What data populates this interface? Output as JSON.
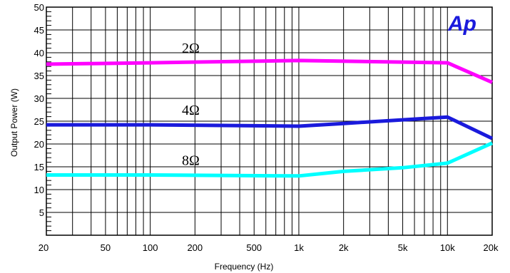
{
  "chart_data": {
    "type": "line",
    "xscale": "log",
    "xlim": [
      20,
      20000
    ],
    "ylim": [
      0,
      50
    ],
    "xlabel": "Frequency (Hz)",
    "ylabel": "Output Power (W)",
    "grid": true,
    "legend": "none",
    "xticks": [
      {
        "value": 20,
        "label": "20"
      },
      {
        "value": 50,
        "label": "50"
      },
      {
        "value": 100,
        "label": "100"
      },
      {
        "value": 200,
        "label": "200"
      },
      {
        "value": 500,
        "label": "500"
      },
      {
        "value": 1000,
        "label": "1k"
      },
      {
        "value": 2000,
        "label": "2k"
      },
      {
        "value": 5000,
        "label": "5k"
      },
      {
        "value": 10000,
        "label": "10k"
      },
      {
        "value": 20000,
        "label": "20k"
      }
    ],
    "yticks": [
      5,
      10,
      15,
      20,
      25,
      30,
      35,
      40,
      45,
      50
    ],
    "series": [
      {
        "name": "2Ω",
        "color": "#ff00ff",
        "x": [
          20,
          100,
          1000,
          10000,
          20000
        ],
        "y": [
          37.5,
          37.8,
          38.3,
          37.8,
          33.5
        ]
      },
      {
        "name": "4Ω",
        "color": "#1a1adc",
        "x": [
          20,
          100,
          1000,
          2000,
          5000,
          10000,
          20000
        ],
        "y": [
          24.2,
          24.2,
          23.9,
          24.5,
          25.3,
          25.9,
          21.2
        ]
      },
      {
        "name": "8Ω",
        "color": "#00ffff",
        "x": [
          20,
          100,
          1000,
          2000,
          5000,
          10000,
          20000
        ],
        "y": [
          13.2,
          13.2,
          13.0,
          14.0,
          14.8,
          15.8,
          20.2
        ]
      }
    ]
  },
  "logo": {
    "text": "Ap",
    "color": "#1a1adc"
  }
}
